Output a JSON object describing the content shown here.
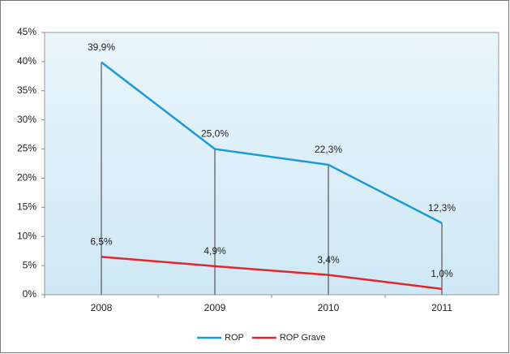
{
  "chart_data": {
    "type": "line",
    "categories": [
      "2008",
      "2009",
      "2010",
      "2011"
    ],
    "series": [
      {
        "name": "ROP",
        "color": "#1a9ad6",
        "values": [
          39.9,
          25.0,
          22.3,
          12.3
        ],
        "value_labels": [
          "39,9%",
          "25,0%",
          "22,3%",
          "12,3%"
        ]
      },
      {
        "name": "ROP Grave",
        "color": "#e3262c",
        "values": [
          6.5,
          4.9,
          3.4,
          1.0
        ],
        "value_labels": [
          "6,5%",
          "4,9%",
          "3,4%",
          "1,0%"
        ]
      }
    ],
    "ylim": [
      0,
      45
    ],
    "yticks": [
      {
        "value": 0,
        "label": "0%"
      },
      {
        "value": 5,
        "label": "5%"
      },
      {
        "value": 10,
        "label": "10%"
      },
      {
        "value": 15,
        "label": "15%"
      },
      {
        "value": 20,
        "label": "20%"
      },
      {
        "value": 25,
        "label": "25%"
      },
      {
        "value": 30,
        "label": "30%"
      },
      {
        "value": 35,
        "label": "35%"
      },
      {
        "value": 40,
        "label": "40%"
      },
      {
        "value": 45,
        "label": "45%"
      }
    ],
    "drop_lines": true,
    "legend": "bottom"
  }
}
